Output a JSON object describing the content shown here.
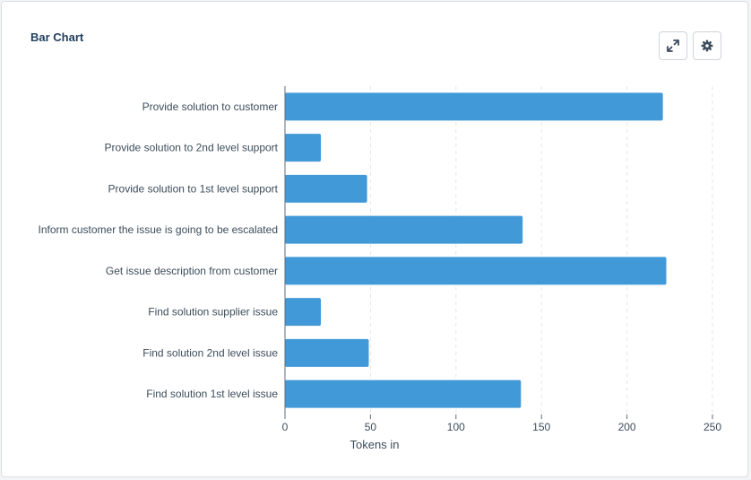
{
  "card": {
    "title": "Bar Chart"
  },
  "toolbar": {
    "expand_icon": "expand-arrows-icon",
    "settings_icon": "gear-icon"
  },
  "colors": {
    "bar": "#4299d8",
    "title": "#213f5f",
    "text": "#3d4d5c",
    "grid": "#e3e6ea",
    "axis": "#5f6b78"
  },
  "chart_data": {
    "type": "bar",
    "orientation": "horizontal",
    "title": "",
    "xlabel": "Tokens in",
    "ylabel": "",
    "xlim": [
      0,
      250
    ],
    "xticks": [
      0,
      50,
      100,
      150,
      200,
      250
    ],
    "grid": true,
    "categories": [
      "Provide solution to customer",
      "Provide solution to 2nd level support",
      "Provide solution to 1st level support",
      "Inform customer the issue is going to be escalated",
      "Get issue description from customer",
      "Find solution supplier issue",
      "Find solution 2nd level issue",
      "Find solution 1st level issue"
    ],
    "values": [
      221,
      21,
      48,
      139,
      223,
      21,
      49,
      138
    ]
  }
}
